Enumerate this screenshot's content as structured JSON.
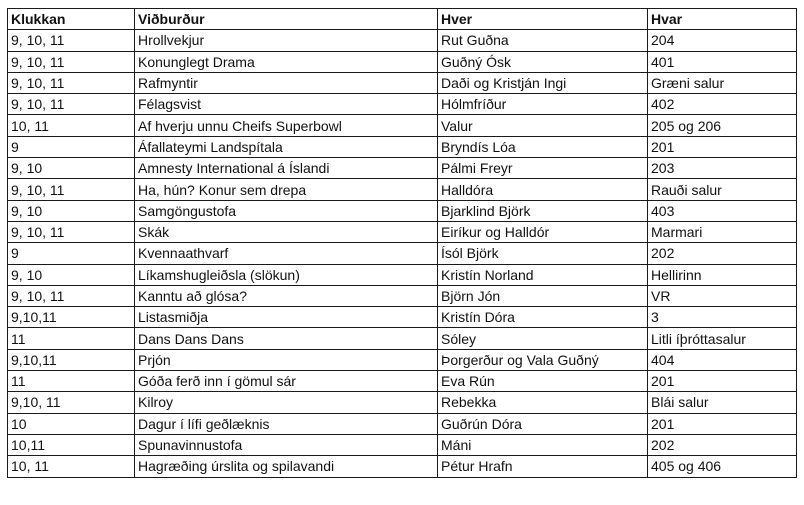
{
  "table": {
    "headers": [
      "Klukkan",
      "Viðburður",
      "Hver",
      "Hvar"
    ],
    "rows": [
      [
        "9, 10, 11",
        "Hrollvekjur",
        "Rut Guðna",
        "204"
      ],
      [
        "9, 10, 11",
        "Konunglegt Drama",
        "Guðný Ósk",
        "401"
      ],
      [
        "9, 10, 11",
        "Rafmyntir",
        "Daði og Kristján Ingi",
        "Græni salur"
      ],
      [
        "9, 10, 11",
        "Félagsvist",
        "Hólmfríður",
        "402"
      ],
      [
        "10, 11",
        "Af hverju unnu Cheifs Superbowl",
        "Valur",
        "205 og 206"
      ],
      [
        "9",
        "Áfallateymi Landspítala",
        "Bryndís Lóa",
        "201"
      ],
      [
        "9, 10",
        "Amnesty International á Íslandi",
        "Pálmi Freyr",
        "203"
      ],
      [
        "9, 10, 11",
        "Ha, hún? Konur sem drepa",
        "Halldóra",
        "Rauði salur"
      ],
      [
        "9, 10",
        "Samgöngustofa",
        "Bjarklind Björk",
        "403"
      ],
      [
        "9, 10, 11",
        "Skák",
        "Eiríkur og Halldór",
        "Marmari"
      ],
      [
        "9",
        "Kvennaathvarf",
        "Ísól Björk",
        "202"
      ],
      [
        "9, 10",
        "Líkamshugleiðsla (slökun)",
        "Kristín Norland",
        "Hellirinn"
      ],
      [
        "9, 10, 11",
        "Kanntu að glósa?",
        "Björn Jón",
        "VR"
      ],
      [
        "9,10,11",
        "Listasmiðja",
        "Kristín Dóra",
        "3"
      ],
      [
        "11",
        "Dans Dans Dans",
        "Sóley",
        "Litli íþróttasalur"
      ],
      [
        "9,10,11",
        "Prjón",
        "Þorgerður og Vala Guðný",
        "404"
      ],
      [
        "11",
        "Góða ferð inn í gömul sár",
        "Eva Rún",
        "201"
      ],
      [
        "9,10, 11",
        "Kilroy",
        "Rebekka",
        "Blái salur"
      ],
      [
        "10",
        "Dagur í lífi geðlæknis",
        "Guðrún Dóra",
        "201"
      ],
      [
        "10,11",
        "Spunavinnustofa",
        "Máni",
        "202"
      ],
      [
        "10, 11",
        "Hagræðing úrslita og spilavandi",
        "Pétur Hrafn",
        "405 og 406"
      ]
    ]
  }
}
